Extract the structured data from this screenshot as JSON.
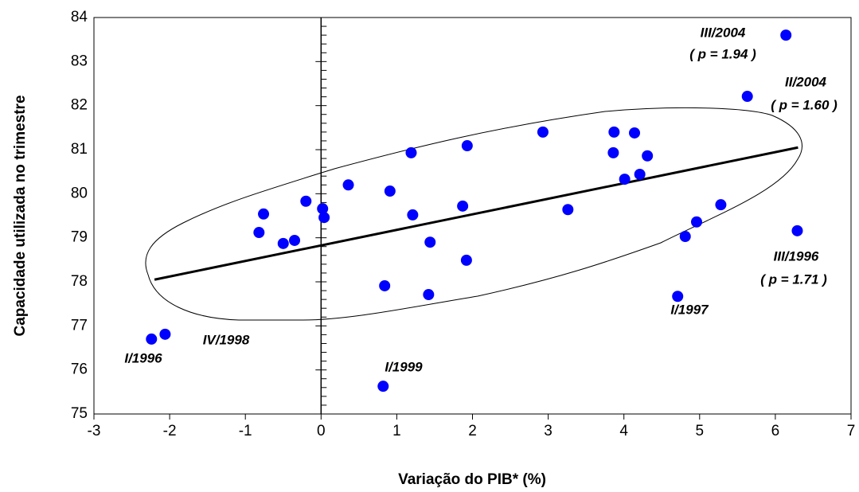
{
  "chart_data": {
    "type": "scatter",
    "x_label": "Variação do PIB* (%)",
    "y_label": "Capacidade utilizada no trimestre",
    "x": [
      -2.24,
      -2.06,
      -0.82,
      -0.76,
      -0.5,
      -0.35,
      -0.2,
      0.02,
      0.04,
      0.36,
      0.91,
      0.84,
      0.82,
      1.19,
      1.21,
      1.42,
      1.44,
      1.87,
      1.92,
      1.93,
      2.93,
      3.26,
      3.87,
      3.86,
      4.14,
      4.01,
      4.21,
      4.31,
      4.71,
      4.81,
      4.96,
      5.28,
      6.29,
      5.63,
      6.14
    ],
    "y": [
      76.7,
      76.81,
      79.12,
      79.54,
      78.87,
      78.94,
      79.83,
      79.66,
      79.46,
      80.2,
      80.06,
      77.91,
      75.63,
      80.93,
      79.52,
      77.71,
      78.9,
      79.72,
      78.49,
      81.09,
      81.4,
      79.64,
      81.4,
      80.93,
      81.38,
      80.33,
      80.44,
      80.86,
      77.67,
      79.03,
      79.36,
      79.75,
      79.16,
      82.21,
      83.6
    ],
    "color": "#0000ff",
    "trend_line": {
      "x": [
        -2.2,
        6.3
      ],
      "y": [
        78.05,
        81.05
      ]
    },
    "xlim": [
      -3,
      7
    ],
    "xticks": [
      -3,
      -2,
      -1,
      0,
      1,
      2,
      3,
      4,
      5,
      6,
      7
    ],
    "ylim": [
      75,
      84
    ],
    "yticks": [
      75,
      76,
      77,
      78,
      79,
      80,
      81,
      82,
      83,
      84
    ],
    "annotations": [
      "III/2004",
      "( p = 1.94 )",
      "II/2004",
      "( p = 1.60 )",
      "III/1996",
      "( p = 1.71 )",
      "I/1997",
      "I/1996",
      "IV/1998",
      "I/1999"
    ]
  }
}
